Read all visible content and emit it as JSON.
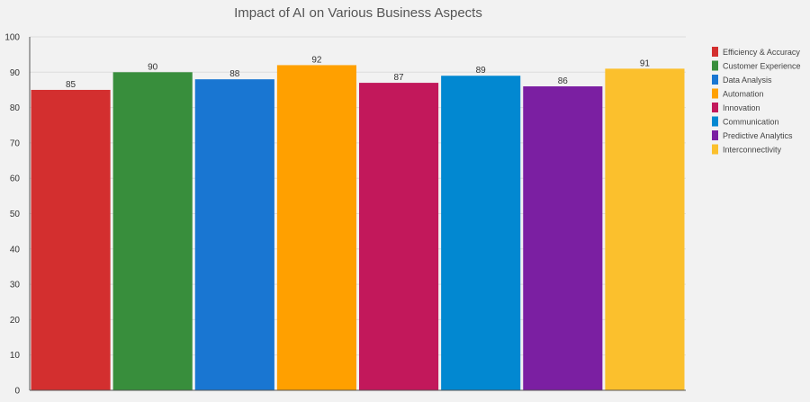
{
  "chart_data": {
    "type": "bar",
    "title": "Impact of AI on Various Business Aspects",
    "xlabel": "",
    "ylabel": "",
    "ylim": [
      0,
      100
    ],
    "yticks": [
      0,
      10,
      20,
      30,
      40,
      50,
      60,
      70,
      80,
      90,
      100
    ],
    "grid": "horizontal",
    "legend_position": "right",
    "categories": [
      "Efficiency & Accuracy",
      "Customer Experience",
      "Data Analysis",
      "Automation",
      "Innovation",
      "Communication",
      "Predictive Analytics",
      "Interconnectivity"
    ],
    "values": [
      85,
      90,
      88,
      92,
      87,
      89,
      86,
      91
    ],
    "colors": [
      "#d32f2f",
      "#388e3c",
      "#1976d2",
      "#ffa000",
      "#c2185b",
      "#0288d1",
      "#7b1fa2",
      "#fbc02d"
    ]
  }
}
